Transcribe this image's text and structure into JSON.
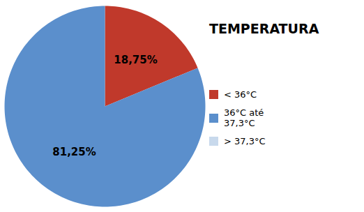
{
  "chart_data": {
    "type": "pie",
    "title": "TEMPERATURA",
    "categories": [
      "< 36°C",
      "36°C até\n37,3°C",
      "> 37,3°C"
    ],
    "values": [
      18.75,
      81.25,
      0.001
    ],
    "value_labels": [
      "18,75%",
      "81,25%",
      null
    ],
    "colors": [
      "#C0392B",
      "#5B8FCC",
      "#C8D9EC"
    ],
    "data_labels": true,
    "legend": "right"
  }
}
